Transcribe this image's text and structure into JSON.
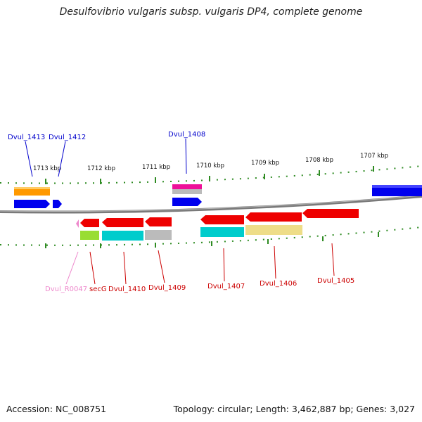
{
  "title": "Desulfovibrio vulgaris subsp. vulgaris DP4, complete genome",
  "accession": "Accession: NC_008751",
  "summary": "Topology: circular; Length: 3,462,887 bp; Genes: 3,027",
  "colors": {
    "backbone": "#8c8c8c",
    "ticks": "#2e8b22",
    "forward_label": "#0000cc",
    "reverse_label": "#cc0000",
    "rna_label": "#ee88cc"
  },
  "scale_labels": [
    "1713 kbp",
    "1712 kbp",
    "1711 kbp",
    "1710 kbp",
    "1709 kbp",
    "1708 kbp",
    "1707 kbp"
  ],
  "genes": [
    {
      "name": "Dvul_1413",
      "strand": "+",
      "color": "#0000ee"
    },
    {
      "name": "Dvul_1412",
      "strand": "+",
      "color": "#0000ee"
    },
    {
      "name": "Dvul_1408",
      "strand": "+",
      "color": "#0000ee"
    },
    {
      "name": "Dvul_R0047",
      "strand": "-",
      "color": "#ee88cc"
    },
    {
      "name": "secG",
      "strand": "-",
      "color": "#ee0000"
    },
    {
      "name": "Dvul_1410",
      "strand": "-",
      "color": "#ee0000"
    },
    {
      "name": "Dvul_1409",
      "strand": "-",
      "color": "#ee0000"
    },
    {
      "name": "Dvul_1407",
      "strand": "-",
      "color": "#ee0000"
    },
    {
      "name": "Dvul_1406",
      "strand": "-",
      "color": "#ee0000"
    },
    {
      "name": "Dvul_1405",
      "strand": "-",
      "color": "#ee0000"
    }
  ],
  "feature_colors": [
    "#ff9900",
    "#ee1199",
    "#99dd33",
    "#00cccc",
    "#bbbbbb",
    "#eedd88",
    "#0000ee"
  ]
}
